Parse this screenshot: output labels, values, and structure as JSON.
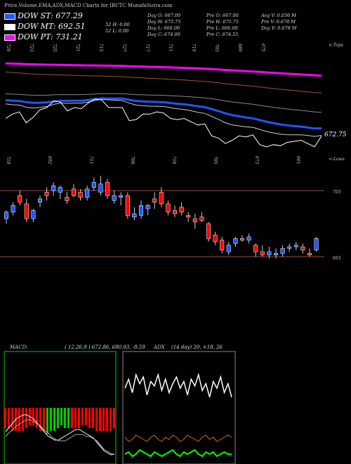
{
  "title": "Price,Volume,EMA,ADX,MACD Charts for IRCTC MunafaSutra.com",
  "legend": [
    {
      "label": "DOW ST: 677.29",
      "color": "#1e56ff"
    },
    {
      "label": "DOW MT: 692.51",
      "color": "#ffffff"
    },
    {
      "label": "DOW PT: 731.21",
      "color": "#ff00ff"
    }
  ],
  "stats": {
    "col1": [
      "",
      "52  H: 0.00",
      "52  L: 0.00"
    ],
    "col2": [
      "Day O: 667.00",
      "Day H: 675.75",
      "Day L: 666.00",
      "Day C: 674.00"
    ],
    "col3": [
      "Pre  O: 667.00",
      "Pre  H: 675.75",
      "Pre  L: 666.00",
      "Pre  C: 674.55"
    ],
    "col4": [
      "Avg V: 0.036  M",
      "Pre  V: 0.678  M",
      "Day V: 0.678  M"
    ]
  },
  "top_axis_labels": [
    "726",
    "723",
    "725",
    "721",
    "715",
    "727",
    "717",
    "711",
    "719",
    "703",
    "689",
    "675"
  ],
  "top_right_label": "<-Tops",
  "ema_price_label": "672.75",
  "lows_axis_labels": [
    "710",
    "692",
    "711",
    "700",
    "718",
    "705",
    "673",
    "661"
  ],
  "lows_right_label": "<-Lows",
  "level_labels": [
    "703",
    "663"
  ],
  "macd_label": "MACD:",
  "macd_values": "( 12,26,9 ) 672.86, 680.93, -8.59",
  "adx_label": "ADX",
  "adx_values": "(14  day) 20, +18, 26",
  "colors": {
    "ema_blue": "#1e56ff",
    "ema_magenta": "#ff00ff",
    "ema_orange": "#a0522d",
    "up": "#1e56ff",
    "down": "#ff0000",
    "level_line": "#a0522d"
  },
  "chart_data": [
    {
      "type": "candlestick",
      "title": "",
      "series": [
        {
          "name": "Price",
          "candles": [
            {
              "o": 686,
              "h": 691,
              "l": 683,
              "c": 690
            },
            {
              "o": 690,
              "h": 696,
              "l": 688,
              "c": 694
            },
            {
              "o": 700,
              "h": 703,
              "l": 694,
              "c": 696
            },
            {
              "o": 695,
              "h": 698,
              "l": 684,
              "c": 686
            },
            {
              "o": 686,
              "h": 692,
              "l": 684,
              "c": 691
            },
            {
              "o": 696,
              "h": 700,
              "l": 693,
              "c": 698
            },
            {
              "o": 702,
              "h": 705,
              "l": 697,
              "c": 700
            },
            {
              "o": 703,
              "h": 708,
              "l": 700,
              "c": 706
            },
            {
              "o": 702,
              "h": 706,
              "l": 698,
              "c": 705
            },
            {
              "o": 699,
              "h": 702,
              "l": 695,
              "c": 697
            },
            {
              "o": 704,
              "h": 707,
              "l": 699,
              "c": 700
            },
            {
              "o": 702,
              "h": 704,
              "l": 697,
              "c": 699
            },
            {
              "o": 699,
              "h": 706,
              "l": 697,
              "c": 704
            },
            {
              "o": 705,
              "h": 711,
              "l": 703,
              "c": 708
            },
            {
              "o": 702,
              "h": 712,
              "l": 700,
              "c": 707
            },
            {
              "o": 708,
              "h": 710,
              "l": 698,
              "c": 700
            },
            {
              "o": 697,
              "h": 703,
              "l": 695,
              "c": 700
            },
            {
              "o": 699,
              "h": 702,
              "l": 694,
              "c": 700
            },
            {
              "o": 700,
              "h": 702,
              "l": 686,
              "c": 688
            },
            {
              "o": 687,
              "h": 693,
              "l": 685,
              "c": 689
            },
            {
              "o": 688,
              "h": 697,
              "l": 686,
              "c": 694
            },
            {
              "o": 692,
              "h": 695,
              "l": 688,
              "c": 694
            },
            {
              "o": 698,
              "h": 702,
              "l": 692,
              "c": 696
            },
            {
              "o": 702,
              "h": 705,
              "l": 693,
              "c": 695
            },
            {
              "o": 695,
              "h": 697,
              "l": 688,
              "c": 690
            },
            {
              "o": 691,
              "h": 694,
              "l": 687,
              "c": 689
            },
            {
              "o": 693,
              "h": 696,
              "l": 688,
              "c": 690
            },
            {
              "o": 688,
              "h": 690,
              "l": 684,
              "c": 687
            },
            {
              "o": 686,
              "h": 689,
              "l": 680,
              "c": 684
            },
            {
              "o": 687,
              "h": 690,
              "l": 684,
              "c": 685
            },
            {
              "o": 683,
              "h": 684,
              "l": 672,
              "c": 674
            },
            {
              "o": 676,
              "h": 678,
              "l": 670,
              "c": 672
            },
            {
              "o": 673,
              "h": 675,
              "l": 665,
              "c": 667
            },
            {
              "o": 666,
              "h": 672,
              "l": 664,
              "c": 670
            },
            {
              "o": 671,
              "h": 675,
              "l": 669,
              "c": 674
            },
            {
              "o": 674,
              "h": 676,
              "l": 672,
              "c": 673
            },
            {
              "o": 673,
              "h": 677,
              "l": 671,
              "c": 675
            },
            {
              "o": 670,
              "h": 671,
              "l": 663,
              "c": 666
            },
            {
              "o": 666,
              "h": 670,
              "l": 663,
              "c": 664
            },
            {
              "o": 664,
              "h": 669,
              "l": 662,
              "c": 666
            },
            {
              "o": 664,
              "h": 668,
              "l": 662,
              "c": 665
            },
            {
              "o": 665,
              "h": 670,
              "l": 663,
              "c": 668
            },
            {
              "o": 668,
              "h": 671,
              "l": 666,
              "c": 669
            },
            {
              "o": 669,
              "h": 672,
              "l": 667,
              "c": 670
            },
            {
              "o": 669,
              "h": 671,
              "l": 665,
              "c": 667
            },
            {
              "o": 665,
              "h": 668,
              "l": 663,
              "c": 664
            },
            {
              "o": 667,
              "h": 675,
              "l": 666,
              "c": 674
            }
          ]
        }
      ]
    },
    {
      "type": "line",
      "title": "MACD",
      "series": [
        {
          "name": "MACD",
          "values": [
            2,
            4,
            6,
            8,
            9,
            10,
            10,
            9,
            8,
            6,
            4,
            2,
            0,
            -1,
            -2,
            -2,
            -1,
            0,
            1,
            2,
            3,
            3,
            2,
            1,
            0,
            -1,
            -3,
            -5,
            -7,
            -8,
            -9,
            -8.6
          ]
        },
        {
          "name": "Signal",
          "values": [
            1,
            3,
            4,
            6,
            7,
            8,
            9,
            9,
            8,
            7,
            6,
            4,
            3,
            1,
            0,
            -1,
            -1,
            -1,
            0,
            1,
            2,
            2,
            2,
            1,
            1,
            0,
            -1,
            -3,
            -5,
            -6,
            -7,
            -7.5
          ]
        }
      ]
    },
    {
      "type": "line",
      "title": "ADX",
      "series": [
        {
          "name": "ADX",
          "values": [
            24,
            28,
            22,
            30,
            26,
            29,
            21,
            27,
            25,
            30,
            23,
            28,
            22,
            26,
            29,
            24,
            27,
            21,
            28,
            25,
            30,
            23,
            26,
            20,
            27,
            24,
            29,
            22,
            26,
            20
          ]
        },
        {
          "name": "+DI",
          "values": [
            18,
            19,
            17,
            18,
            20,
            19,
            18,
            17,
            19,
            18,
            17,
            18,
            19,
            20,
            18,
            17,
            19,
            18,
            19,
            20,
            18,
            17,
            19,
            18,
            19,
            17,
            18,
            19,
            18,
            18
          ]
        },
        {
          "name": "-DI",
          "values": [
            26,
            24,
            25,
            27,
            26,
            25,
            24,
            26,
            27,
            25,
            24,
            26,
            25,
            27,
            26,
            24,
            25,
            27,
            26,
            25,
            24,
            26,
            27,
            25,
            26,
            24,
            25,
            26,
            27,
            26
          ]
        }
      ]
    }
  ]
}
